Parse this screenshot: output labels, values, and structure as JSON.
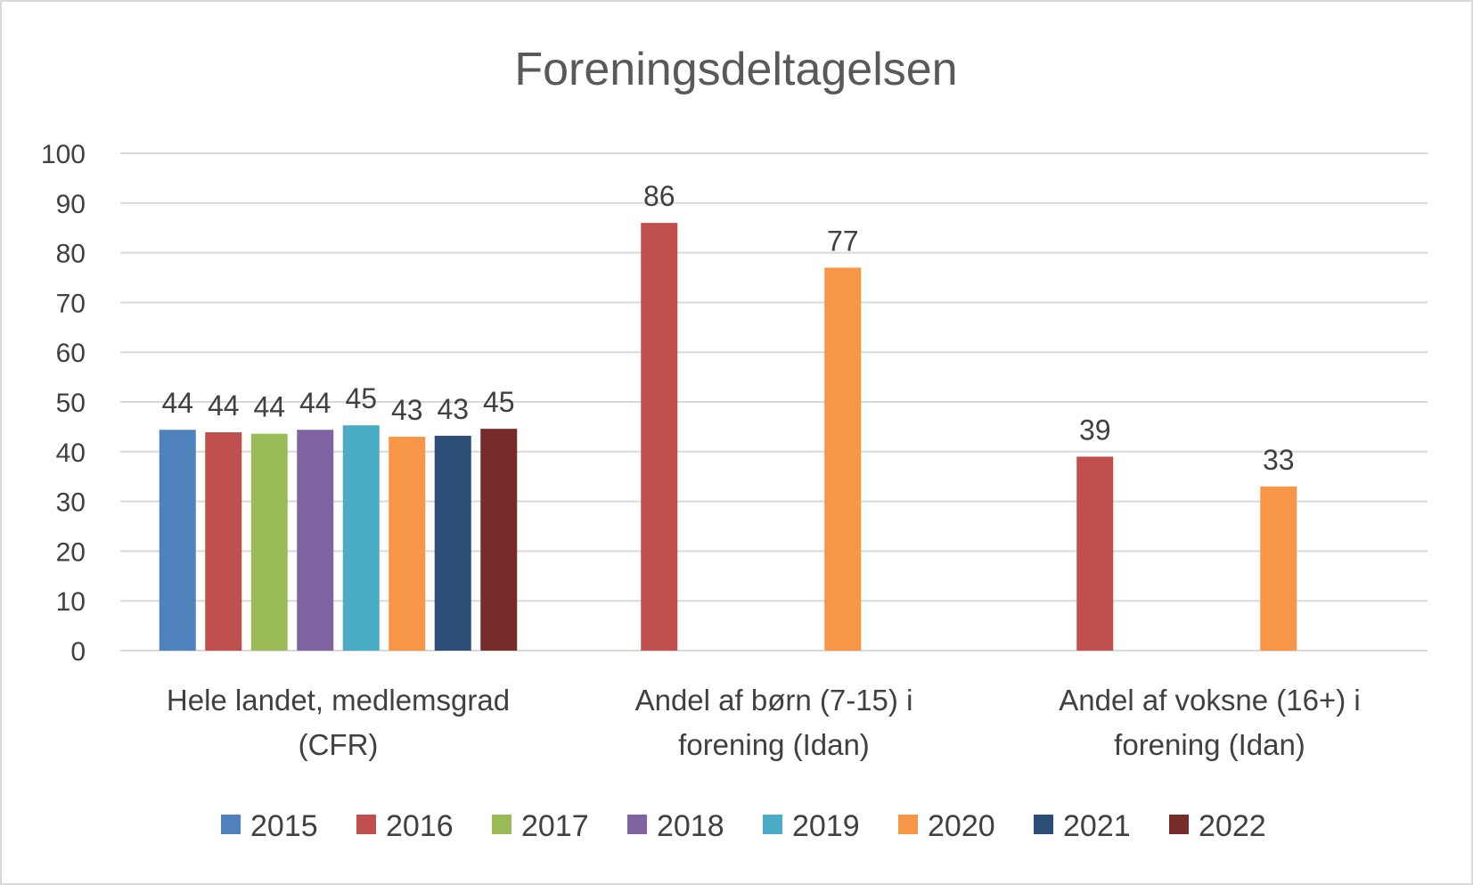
{
  "chart_data": {
    "type": "bar",
    "title": "Foreningsdeltagelsen",
    "xlabel": "",
    "ylabel": "",
    "ylim": [
      0,
      100
    ],
    "yticks": [
      0,
      10,
      20,
      30,
      40,
      50,
      60,
      70,
      80,
      90,
      100
    ],
    "grid": true,
    "legend_position": "bottom",
    "categories": [
      [
        "Hele landet, medlemsgrad",
        "(CFR)"
      ],
      [
        "Andel af børn (7-15) i",
        "forening (Idan)"
      ],
      [
        "Andel af voksne (16+) i",
        "forening (Idan)"
      ]
    ],
    "series": [
      {
        "name": "2015",
        "color": "#4f81bd",
        "values": [
          44.4,
          null,
          null
        ],
        "labels": [
          "44",
          null,
          null
        ]
      },
      {
        "name": "2016",
        "color": "#c0504d",
        "values": [
          43.9,
          86,
          39
        ],
        "labels": [
          "44",
          "86",
          "39"
        ]
      },
      {
        "name": "2017",
        "color": "#9bbb59",
        "values": [
          43.6,
          null,
          null
        ],
        "labels": [
          "44",
          null,
          null
        ]
      },
      {
        "name": "2018",
        "color": "#8064a2",
        "values": [
          44.4,
          null,
          null
        ],
        "labels": [
          "44",
          null,
          null
        ]
      },
      {
        "name": "2019",
        "color": "#4bacc6",
        "values": [
          45.3,
          null,
          null
        ],
        "labels": [
          "45",
          null,
          null
        ]
      },
      {
        "name": "2020",
        "color": "#f79646",
        "values": [
          43.0,
          77,
          33
        ],
        "labels": [
          "43",
          "77",
          "33"
        ]
      },
      {
        "name": "2021",
        "color": "#2c4d75",
        "values": [
          43.2,
          null,
          null
        ],
        "labels": [
          "43",
          null,
          null
        ]
      },
      {
        "name": "2022",
        "color": "#772c2a",
        "values": [
          44.6,
          null,
          null
        ],
        "labels": [
          "45",
          null,
          null
        ]
      }
    ]
  }
}
